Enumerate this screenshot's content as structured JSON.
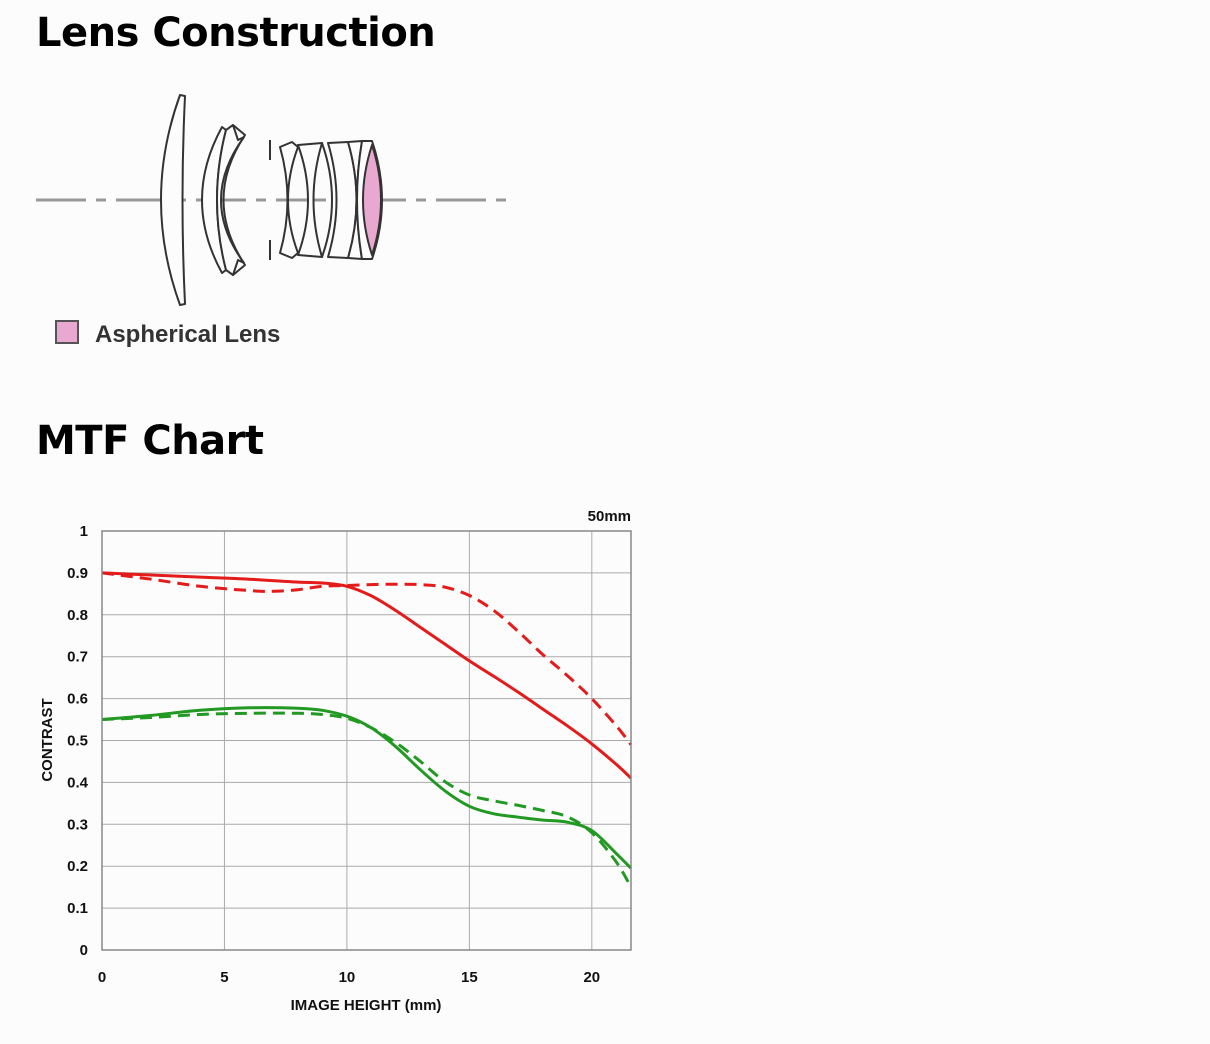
{
  "lens_section": {
    "heading": "Lens Construction",
    "legend_label": "Aspherical Lens",
    "colors": {
      "aspherical": "#e8a8d0",
      "outline": "#333333",
      "axis": "#999999"
    }
  },
  "mtf_section": {
    "heading": "MTF Chart"
  },
  "chart_data": {
    "type": "line",
    "annotation": "50mm",
    "xlabel": "IMAGE HEIGHT (mm)",
    "ylabel": "CONTRAST",
    "xlim": [
      0,
      21.6
    ],
    "ylim": [
      0,
      1
    ],
    "xticks": [
      0,
      5,
      10,
      15,
      20
    ],
    "yticks": [
      0,
      0.1,
      0.2,
      0.3,
      0.4,
      0.5,
      0.6,
      0.7,
      0.8,
      0.9,
      1
    ],
    "grid": true,
    "series": [
      {
        "color": "#e41b1b",
        "dashed": false,
        "x": [
          0,
          2,
          4,
          6,
          8,
          9,
          10,
          11,
          12,
          13,
          14,
          15,
          16,
          17,
          18,
          19,
          20,
          21,
          21.6
        ],
        "y": [
          0.9,
          0.895,
          0.89,
          0.885,
          0.878,
          0.876,
          0.868,
          0.845,
          0.81,
          0.77,
          0.73,
          0.69,
          0.653,
          0.615,
          0.575,
          0.535,
          0.492,
          0.443,
          0.41
        ]
      },
      {
        "color": "#e41b1b",
        "dashed": true,
        "x": [
          0,
          2,
          4,
          6,
          7,
          8,
          9,
          10,
          11,
          12,
          13,
          14,
          15,
          16,
          17,
          18,
          19,
          20,
          21,
          21.6
        ],
        "y": [
          0.9,
          0.885,
          0.868,
          0.858,
          0.856,
          0.86,
          0.868,
          0.87,
          0.872,
          0.873,
          0.872,
          0.866,
          0.846,
          0.81,
          0.76,
          0.705,
          0.655,
          0.6,
          0.535,
          0.49
        ]
      },
      {
        "color": "#229922",
        "dashed": false,
        "x": [
          0,
          2,
          4,
          6,
          8,
          9,
          10,
          11,
          12,
          13,
          14,
          15,
          16,
          17,
          18,
          19,
          20,
          21,
          21.6
        ],
        "y": [
          0.55,
          0.56,
          0.572,
          0.578,
          0.577,
          0.572,
          0.558,
          0.53,
          0.485,
          0.43,
          0.38,
          0.343,
          0.325,
          0.317,
          0.31,
          0.305,
          0.285,
          0.23,
          0.195
        ]
      },
      {
        "color": "#229922",
        "dashed": true,
        "x": [
          0,
          2,
          4,
          6,
          8,
          9,
          10,
          11,
          12,
          13,
          14,
          15,
          16,
          17,
          18,
          19,
          20,
          21,
          21.6
        ],
        "y": [
          0.55,
          0.555,
          0.562,
          0.565,
          0.565,
          0.562,
          0.553,
          0.53,
          0.495,
          0.45,
          0.402,
          0.37,
          0.356,
          0.345,
          0.333,
          0.318,
          0.28,
          0.21,
          0.15
        ]
      }
    ]
  }
}
